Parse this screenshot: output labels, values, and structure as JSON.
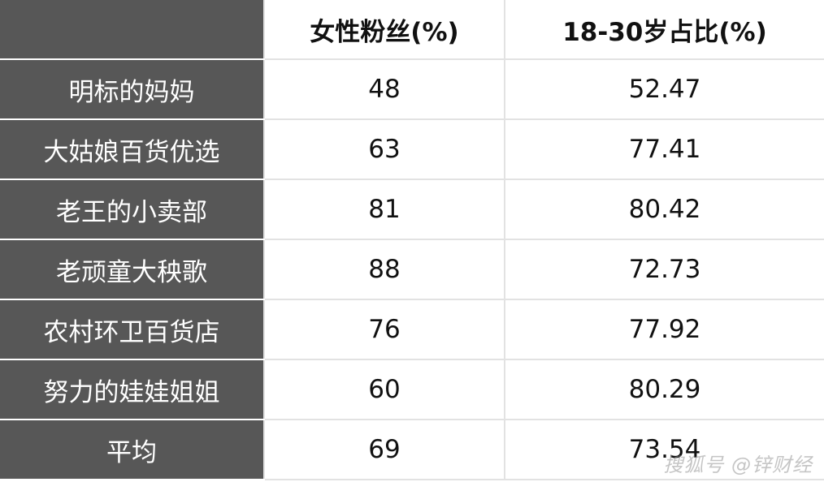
{
  "table": {
    "headers": [
      "",
      "女性粉丝(%)",
      "18-30岁占比(%)"
    ],
    "rows": [
      {
        "name": "明标的妈妈",
        "female": "48",
        "age_18_30": "52.47"
      },
      {
        "name": "大姑娘百货优选",
        "female": "63",
        "age_18_30": "77.41"
      },
      {
        "name": "老王的小卖部",
        "female": "81",
        "age_18_30": "80.42"
      },
      {
        "name": "老顽童大秧歌",
        "female": "88",
        "age_18_30": "72.73"
      },
      {
        "name": "农村环卫百货店",
        "female": "76",
        "age_18_30": "77.92"
      },
      {
        "name": "努力的娃娃姐姐",
        "female": "60",
        "age_18_30": "80.29"
      },
      {
        "name": "平均",
        "female": "69",
        "age_18_30": "73.54"
      }
    ]
  },
  "watermark": "搜狐号 @锌财经",
  "colors": {
    "name_column_bg": "#575757",
    "grid": "#e2e2e2"
  }
}
